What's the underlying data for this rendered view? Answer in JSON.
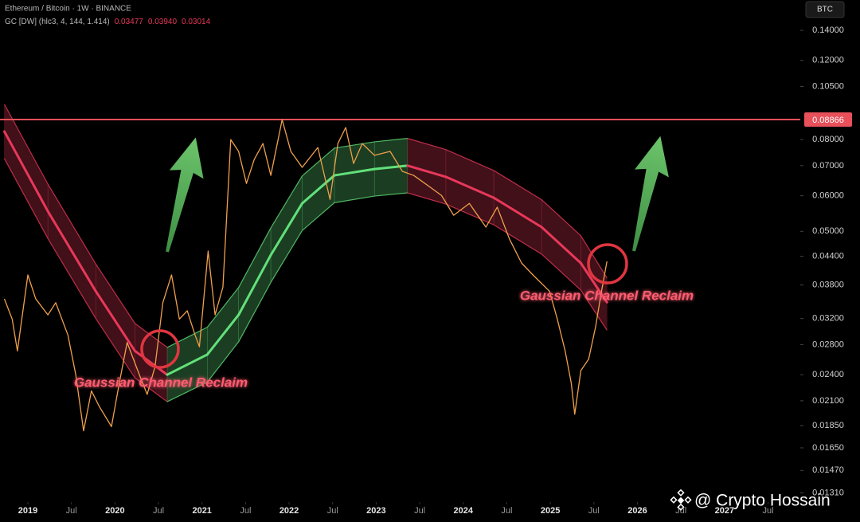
{
  "chart_data": {
    "type": "line",
    "title": "Ethereum / Bitcoin · 1W · BINANCE",
    "currency": "BTC",
    "log_scale": true,
    "grid": false,
    "xlim": [
      2018.68,
      2027.87
    ],
    "ylim": [
      0.0125,
      0.1635
    ],
    "xticks": [
      {
        "value": 2019,
        "label": "2019"
      },
      {
        "value": 2019.5,
        "label": "Jul"
      },
      {
        "value": 2020,
        "label": "2020"
      },
      {
        "value": 2020.5,
        "label": "Jul"
      },
      {
        "value": 2021,
        "label": "2021"
      },
      {
        "value": 2021.5,
        "label": "Jul"
      },
      {
        "value": 2022,
        "label": "2022"
      },
      {
        "value": 2022.5,
        "label": "Jul"
      },
      {
        "value": 2023,
        "label": "2023"
      },
      {
        "value": 2023.5,
        "label": "Jul"
      },
      {
        "value": 2024,
        "label": "2024"
      },
      {
        "value": 2024.5,
        "label": "Jul"
      },
      {
        "value": 2025,
        "label": "2025"
      },
      {
        "value": 2025.5,
        "label": "Jul"
      },
      {
        "value": 2026,
        "label": "2026"
      },
      {
        "value": 2026.5,
        "label": "Jul"
      },
      {
        "value": 2027,
        "label": "2027"
      },
      {
        "value": 2027.5,
        "label": "Jul"
      }
    ],
    "yticks": [
      {
        "value": 0.14,
        "label": "0.14000"
      },
      {
        "value": 0.12,
        "label": "0.12000"
      },
      {
        "value": 0.105,
        "label": "0.10500"
      },
      {
        "value": 0.08,
        "label": "0.08000"
      },
      {
        "value": 0.07,
        "label": "0.07000"
      },
      {
        "value": 0.06,
        "label": "0.06000"
      },
      {
        "value": 0.05,
        "label": "0.05000"
      },
      {
        "value": 0.044,
        "label": "0.04400"
      },
      {
        "value": 0.038,
        "label": "0.03800"
      },
      {
        "value": 0.032,
        "label": "0.03200"
      },
      {
        "value": 0.028,
        "label": "0.02800"
      },
      {
        "value": 0.024,
        "label": "0.02400"
      },
      {
        "value": 0.021,
        "label": "0.02100"
      },
      {
        "value": 0.0185,
        "label": "0.01850"
      },
      {
        "value": 0.0165,
        "label": "0.01650"
      },
      {
        "value": 0.0147,
        "label": "0.01470"
      },
      {
        "value": 0.0131,
        "label": "0.01310"
      }
    ],
    "x": [
      2018.73,
      2018.82,
      2018.88,
      2019.0,
      2019.09,
      2019.23,
      2019.32,
      2019.46,
      2019.55,
      2019.64,
      2019.73,
      2019.82,
      2019.96,
      2020.05,
      2020.14,
      2020.28,
      2020.37,
      2020.46,
      2020.55,
      2020.65,
      2020.74,
      2020.83,
      2020.92,
      2020.97,
      2021.07,
      2021.15,
      2021.24,
      2021.33,
      2021.42,
      2021.51,
      2021.6,
      2021.7,
      2021.79,
      2021.92,
      2022.02,
      2022.15,
      2022.33,
      2022.47,
      2022.56,
      2022.65,
      2022.74,
      2022.84,
      2022.98,
      2023.16,
      2023.3,
      2023.43,
      2023.62,
      2023.75,
      2023.89,
      2024.07,
      2024.26,
      2024.39,
      2024.53,
      2024.67,
      2024.8,
      2024.99,
      2025.08,
      2025.17,
      2025.24,
      2025.28,
      2025.35,
      2025.44,
      2025.52,
      2025.58,
      2025.65
    ],
    "series": [
      {
        "color": "#f0a04b",
        "values": [
          0.0354,
          0.0319,
          0.0271,
          0.04,
          0.0354,
          0.0326,
          0.0347,
          0.0294,
          0.024,
          0.018,
          0.0221,
          0.0204,
          0.0184,
          0.023,
          0.0283,
          0.024,
          0.0217,
          0.025,
          0.0347,
          0.04,
          0.0319,
          0.0333,
          0.0294,
          0.0277,
          0.0452,
          0.0326,
          0.0376,
          0.08,
          0.0753,
          0.0639,
          0.0723,
          0.0784,
          0.0666,
          0.0886,
          0.0753,
          0.0694,
          0.0768,
          0.0589,
          0.0784,
          0.0851,
          0.0708,
          0.0784,
          0.0738,
          0.0753,
          0.068,
          0.0666,
          0.0627,
          0.0601,
          0.0543,
          0.0577,
          0.0511,
          0.0566,
          0.0481,
          0.0425,
          0.04,
          0.0368,
          0.0319,
          0.0271,
          0.023,
          0.0196,
          0.0245,
          0.026,
          0.0307,
          0.0361,
          0.0429
        ]
      }
    ],
    "channel": {
      "label": "GC [DW] (hlc3, 4, 144, 1.414)",
      "last_values": [
        0.03477,
        {
          "value": 0.0394,
          "label": "0.03940"
        },
        0.03014
      ],
      "up_color": "#62e07a",
      "down_color": "#e8385a",
      "x": [
        2018.73,
        2019.23,
        2019.78,
        2020.23,
        2020.6,
        2021.06,
        2021.42,
        2021.79,
        2022.15,
        2022.52,
        2022.98,
        2023.36,
        2023.8,
        2024.35,
        2024.9,
        2025.35,
        2025.65
      ],
      "mid": [
        0.0834,
        0.0554,
        0.0368,
        0.0271,
        0.024,
        0.0266,
        0.0326,
        0.0443,
        0.0577,
        0.0666,
        0.0688,
        0.07,
        0.0661,
        0.0594,
        0.0511,
        0.0425,
        0.03477
      ],
      "upper": [
        0.0959,
        0.0637,
        0.0423,
        0.0312,
        0.0276,
        0.0306,
        0.0375,
        0.0509,
        0.0664,
        0.0766,
        0.0791,
        0.0805,
        0.076,
        0.0683,
        0.0588,
        0.0489,
        0.0394
      ],
      "lower": [
        0.0726,
        0.0482,
        0.032,
        0.0236,
        0.0209,
        0.0231,
        0.0284,
        0.0385,
        0.0502,
        0.0579,
        0.0599,
        0.0609,
        0.0575,
        0.0517,
        0.0445,
        0.037,
        0.03014
      ]
    },
    "hline": {
      "value": 0.08866,
      "color": "#e8505a"
    },
    "annotations": [
      "Gaussian Channel Reclaim",
      "Gaussian Channel Reclaim"
    ],
    "watermark": "@ Crypto Hossain"
  }
}
